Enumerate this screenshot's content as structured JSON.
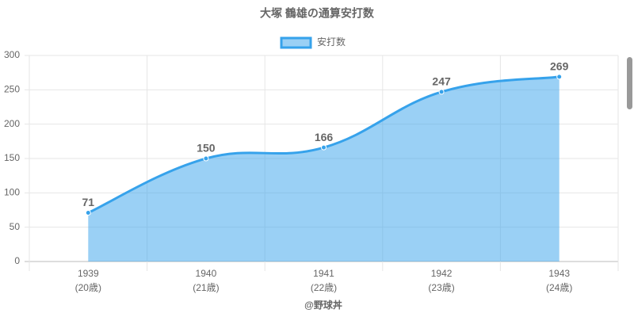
{
  "chart_data": {
    "type": "area",
    "title": "大塚 鶴雄の通算安打数",
    "categories": [
      [
        "1939",
        "(20歳)"
      ],
      [
        "1940",
        "(21歳)"
      ],
      [
        "1941",
        "(22歳)"
      ],
      [
        "1942",
        "(23歳)"
      ],
      [
        "1943",
        "(24歳)"
      ]
    ],
    "series": [
      {
        "name": "安打数",
        "color": "#36a2eb",
        "values": [
          71,
          150,
          166,
          247,
          269
        ]
      }
    ],
    "x_label": "@野球丼",
    "ylim": [
      0,
      300
    ],
    "yticks": [
      0,
      50,
      100,
      150,
      200,
      250,
      300
    ],
    "grid": true,
    "legend": "top"
  }
}
